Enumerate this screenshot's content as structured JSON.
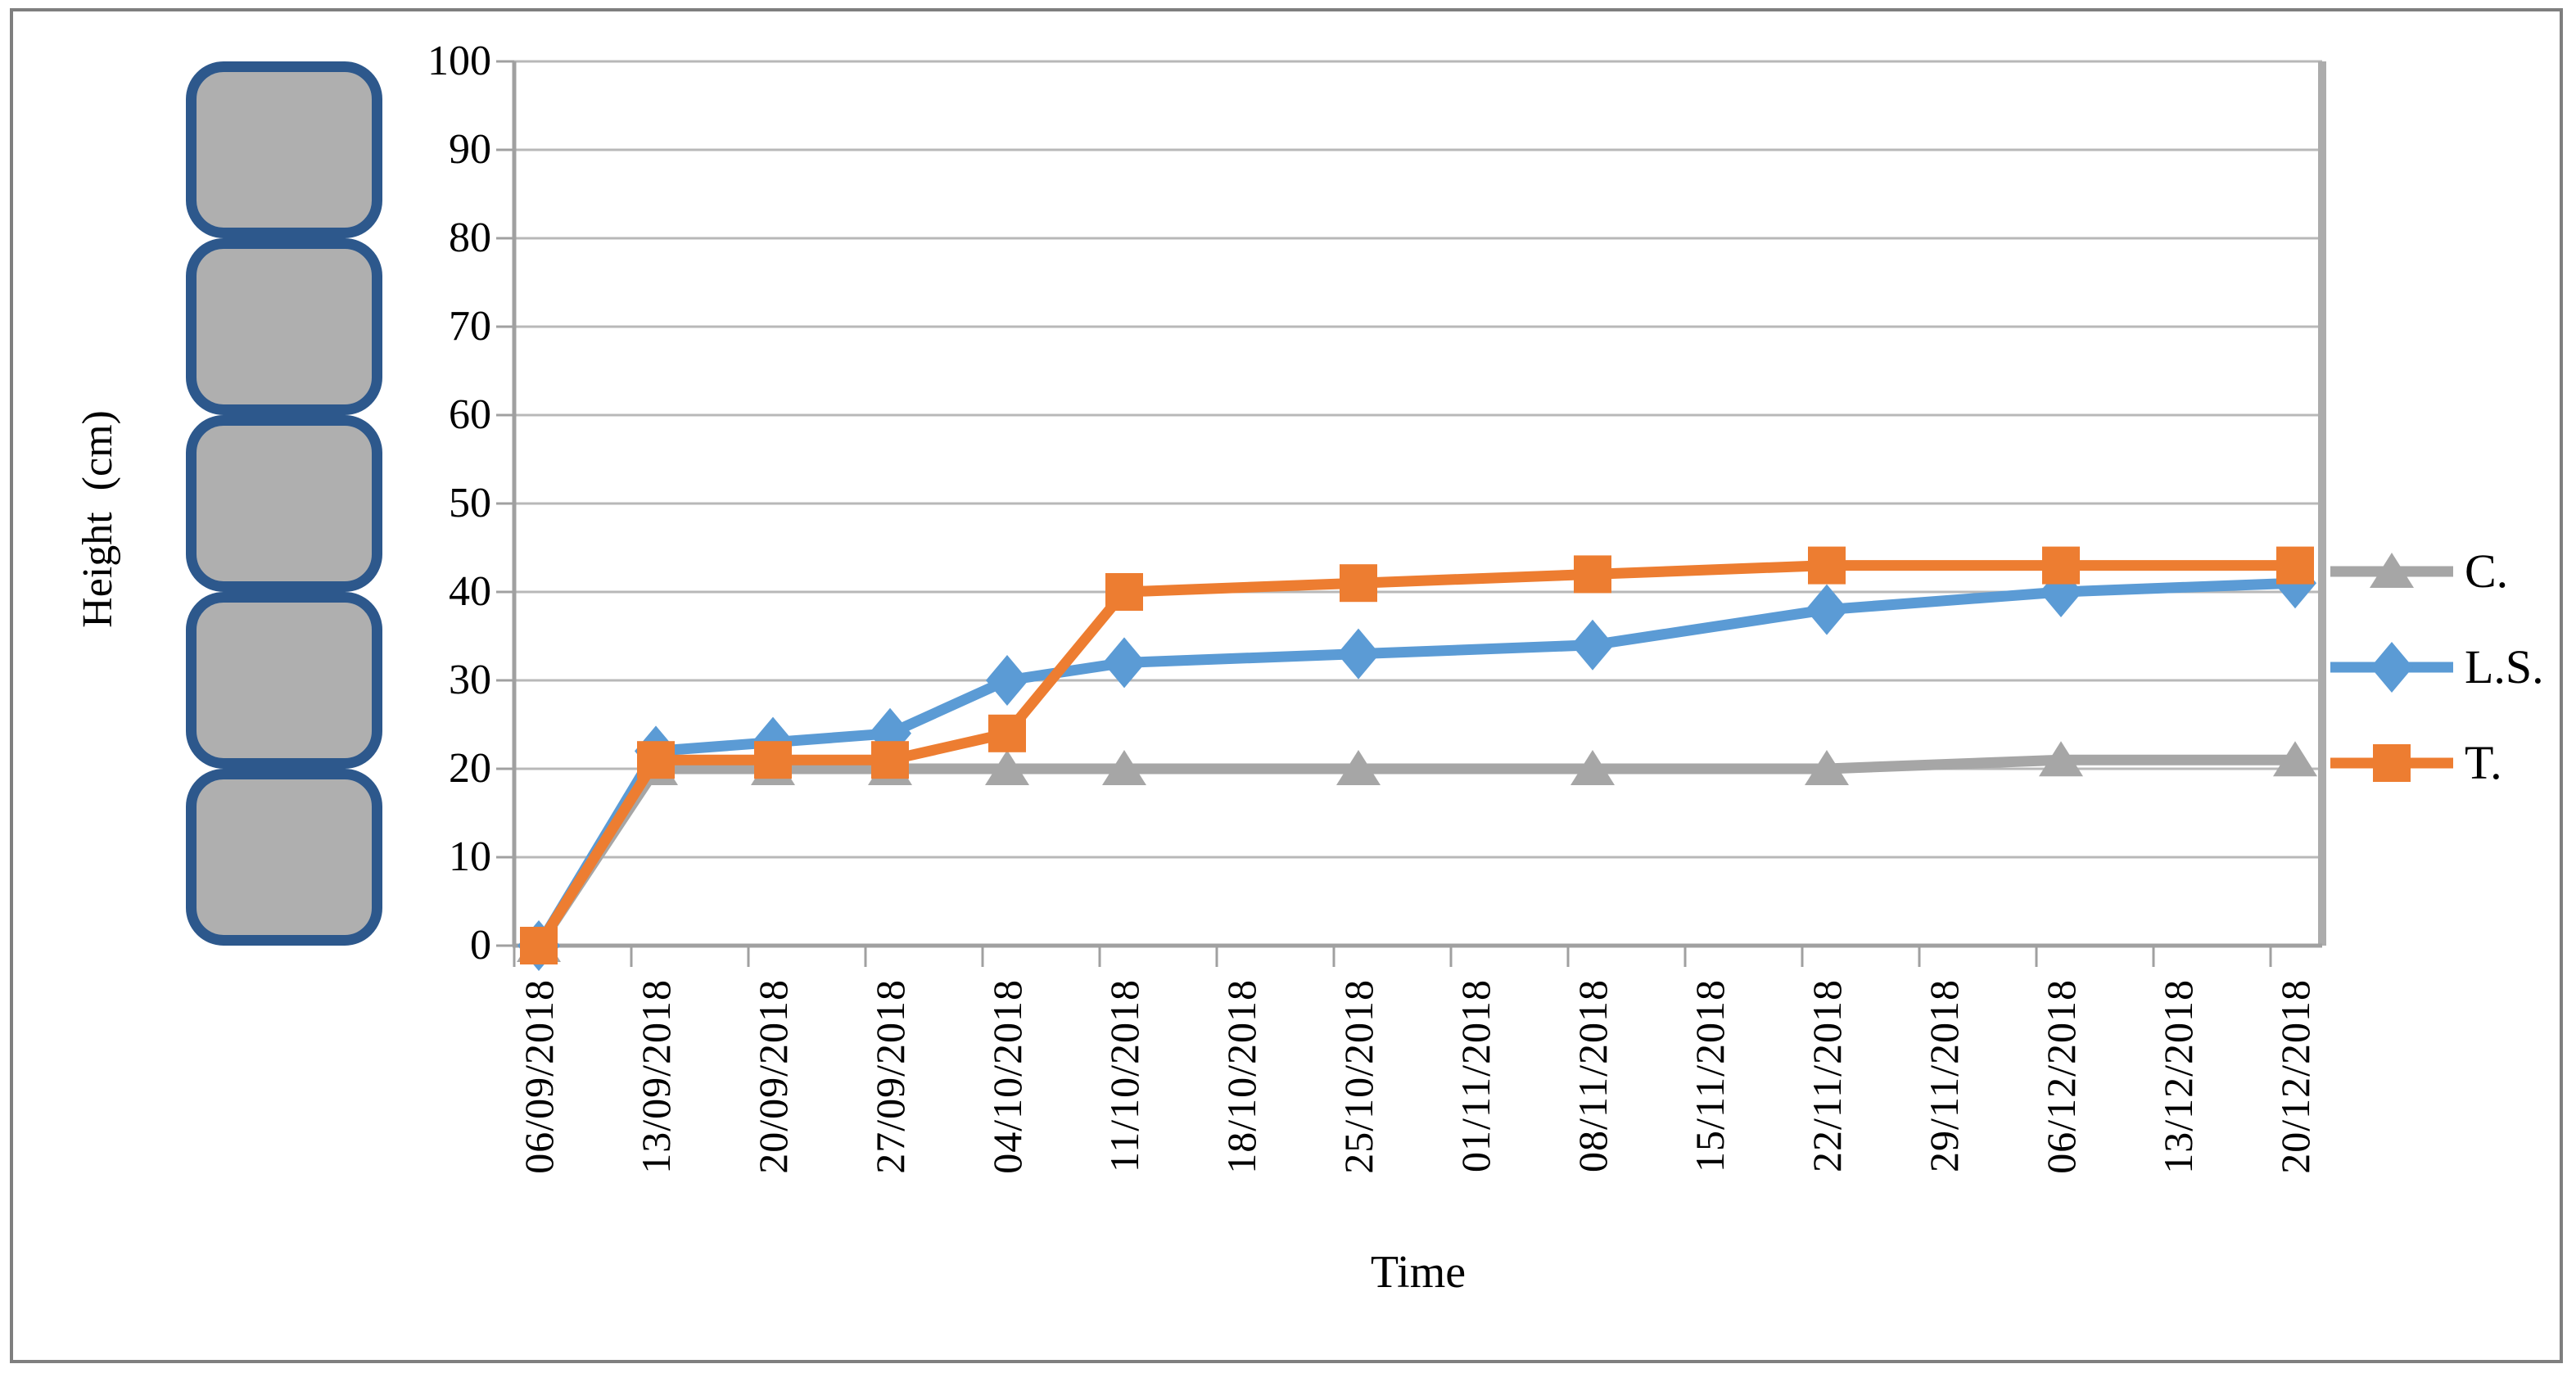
{
  "chart_data": {
    "type": "line",
    "title": "",
    "xlabel": "Time",
    "ylabel": "Height  (cm)",
    "ylim": [
      0,
      100
    ],
    "ytick_step": 10,
    "grid": true,
    "legend_position": "right",
    "categories": [
      "06/09/2018",
      "13/09/2018",
      "20/09/2018",
      "27/09/2018",
      "04/10/2018",
      "11/10/2018",
      "18/10/2018",
      "25/10/2018",
      "01/11/2018",
      "08/11/2018",
      "15/11/2018",
      "22/11/2018",
      "29/11/2018",
      "06/12/2018",
      "13/12/2018",
      "20/12/2018"
    ],
    "series": [
      {
        "name": "C.",
        "color": "#A6A6A6",
        "marker": "triangle",
        "values": [
          0,
          20,
          20,
          20,
          20,
          20,
          null,
          20,
          null,
          20,
          null,
          20,
          null,
          21,
          null,
          21
        ]
      },
      {
        "name": "L.S.",
        "color": "#5B9BD5",
        "marker": "diamond",
        "values": [
          0,
          22,
          23,
          24,
          30,
          32,
          null,
          33,
          null,
          34,
          null,
          38,
          null,
          40,
          null,
          41
        ]
      },
      {
        "name": "T.",
        "color": "#ED7D31",
        "marker": "square",
        "values": [
          0,
          21,
          21,
          21,
          24,
          40,
          null,
          41,
          null,
          42,
          null,
          43,
          null,
          43,
          null,
          43
        ]
      }
    ]
  },
  "decoration": {
    "height_scale_blocks": {
      "count": 5,
      "fill": "#AFAFAF",
      "border_color": "#2D588C"
    }
  },
  "colors": {
    "axis": "#A0A0A0",
    "gridline": "#B8B8B8",
    "plot_right_border": "#ACACAC",
    "frame_border": "#7F7F7F",
    "text": "#000000"
  }
}
